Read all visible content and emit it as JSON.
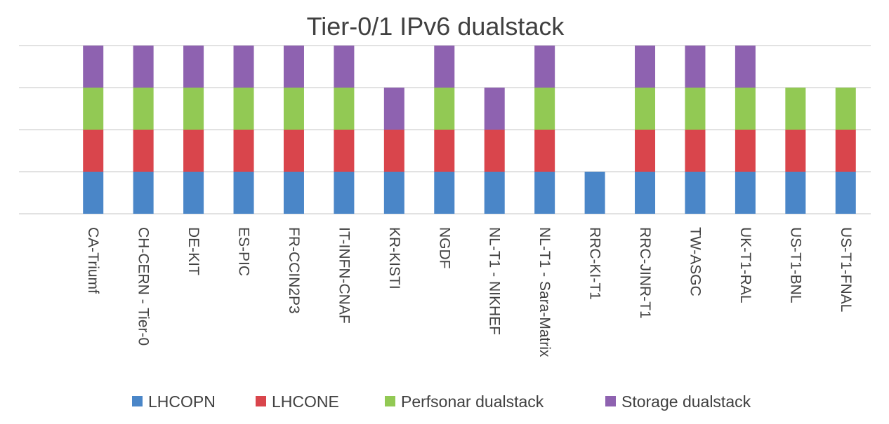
{
  "chart_data": {
    "type": "bar",
    "stacked": true,
    "title": "Tier-0/1 IPv6 dualstack",
    "xlabel": "",
    "ylabel": "",
    "ylim": [
      0,
      4
    ],
    "y_ticks_labeled": false,
    "grid": true,
    "legend_position": "bottom",
    "categories": [
      "CA-Triumf",
      "CH-CERN - Tier-0",
      "DE-KIT",
      "ES-PIC",
      "FR-CCIN2P3",
      "IT-INFN-CNAF",
      "KR-KISTI",
      "NGDF",
      "NL-T1 - NIKHEF",
      "NL-T1 - Sara-Matrix",
      "RRC-KI-T1",
      "RRC-JINR-T1",
      "TW-ASGC",
      "UK-T1-RAL",
      "US-T1-BNL",
      "US-T1-FNAL"
    ],
    "series": [
      {
        "name": "LHCOPN",
        "color": "#4a86c8",
        "values": [
          1,
          1,
          1,
          1,
          1,
          1,
          1,
          1,
          1,
          1,
          1,
          1,
          1,
          1,
          1,
          1
        ]
      },
      {
        "name": "LHCONE",
        "color": "#d9454c",
        "values": [
          1,
          1,
          1,
          1,
          1,
          1,
          1,
          1,
          1,
          1,
          0,
          1,
          1,
          1,
          1,
          1
        ]
      },
      {
        "name": "Perfsonar dualstack",
        "color": "#92c954",
        "values": [
          1,
          1,
          1,
          1,
          1,
          1,
          0,
          1,
          0,
          1,
          0,
          1,
          1,
          1,
          1,
          1
        ]
      },
      {
        "name": "Storage dualstack",
        "color": "#8e62b0",
        "values": [
          1,
          1,
          1,
          1,
          1,
          1,
          1,
          1,
          1,
          1,
          0,
          1,
          1,
          1,
          0,
          0
        ]
      }
    ]
  }
}
